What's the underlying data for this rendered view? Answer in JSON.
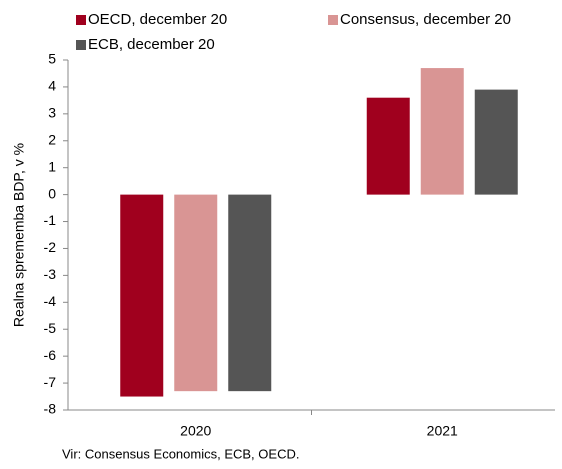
{
  "chart_data": {
    "type": "bar",
    "y_label": "Realna sprememba BDP, v %",
    "note": "Vir: Consensus Economics, ECB, OECD.",
    "categories": [
      "2020",
      "2021"
    ],
    "series": [
      {
        "name": "OECD, december 20",
        "color": "#a0001e",
        "values": [
          -7.5,
          3.6
        ]
      },
      {
        "name": "Consensus, december 20",
        "color": "#d99594",
        "values": [
          -7.3,
          4.7
        ]
      },
      {
        "name": "ECB, december 20",
        "color": "#555555",
        "values": [
          -7.3,
          3.9
        ]
      }
    ],
    "ylim": [
      -8,
      5
    ],
    "yticks": [
      -8,
      -7,
      -6,
      -5,
      -4,
      -3,
      -2,
      -1,
      0,
      1,
      2,
      3,
      4,
      5
    ],
    "grid": false,
    "legend": "top"
  }
}
